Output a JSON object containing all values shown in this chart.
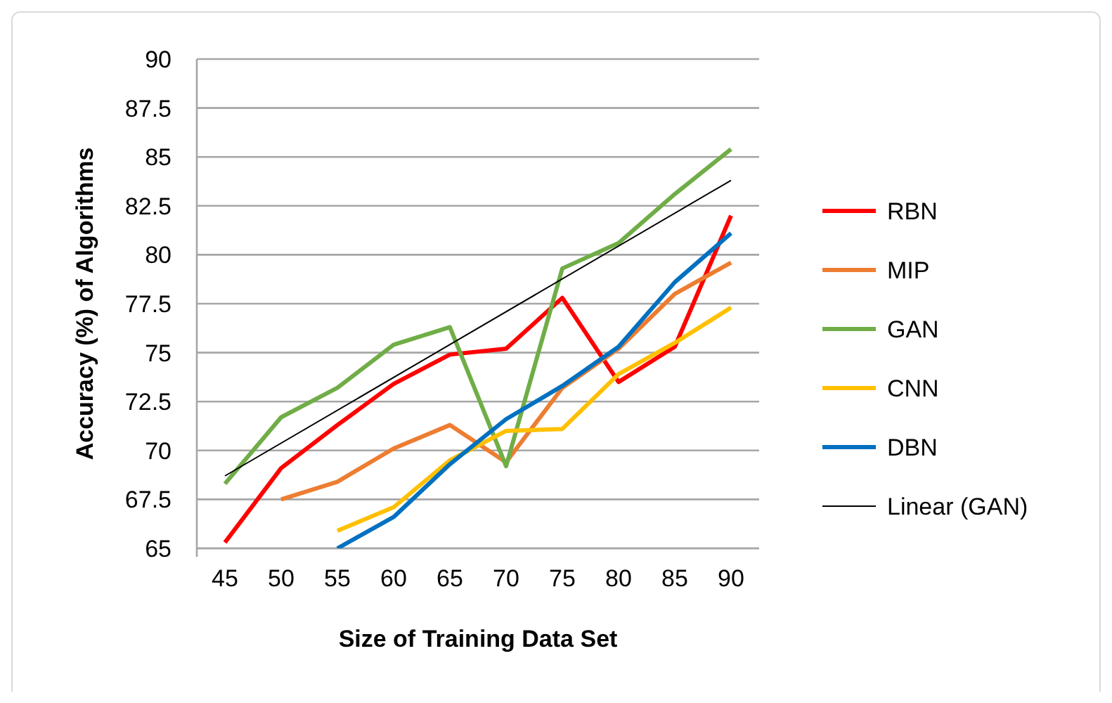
{
  "chart_data": {
    "type": "line",
    "xlabel": "Size of Training Data Set",
    "ylabel": "Accuracy (%) of Algorithms",
    "categories": [
      "45",
      "50",
      "55",
      "60",
      "65",
      "70",
      "75",
      "80",
      "85",
      "90"
    ],
    "series": [
      {
        "name": "RBN",
        "color": "#ff0000",
        "values": [
          65.3,
          69.1,
          71.3,
          73.4,
          74.9,
          75.2,
          77.8,
          73.5,
          75.3,
          82.0
        ]
      },
      {
        "name": "MIP",
        "color": "#ed7d31",
        "values": [
          null,
          67.5,
          68.4,
          70.1,
          71.3,
          69.4,
          73.2,
          75.2,
          78.0,
          79.6
        ]
      },
      {
        "name": "GAN",
        "color": "#70ad47",
        "values": [
          68.3,
          71.7,
          73.2,
          75.4,
          76.3,
          69.2,
          79.3,
          80.6,
          83.1,
          85.4
        ]
      },
      {
        "name": "CNN",
        "color": "#ffc000",
        "values": [
          null,
          null,
          65.9,
          67.1,
          69.5,
          71.0,
          71.1,
          73.9,
          75.5,
          77.3
        ]
      },
      {
        "name": "DBN",
        "color": "#0070c0",
        "values": [
          null,
          null,
          65.0,
          66.6,
          69.3,
          71.6,
          73.3,
          75.3,
          78.6,
          81.1
        ]
      },
      {
        "name": "Linear (GAN)",
        "color": "#000000",
        "x": [
          "45",
          "90"
        ],
        "values": [
          68.7,
          83.8
        ]
      }
    ],
    "ylim": [
      65,
      90
    ],
    "yticks": [
      65,
      67.5,
      70,
      72.5,
      75,
      77.5,
      80,
      82.5,
      85,
      87.5,
      90
    ],
    "grid": "y",
    "legend": "right",
    "marker": "none",
    "line_style": "solid"
  }
}
